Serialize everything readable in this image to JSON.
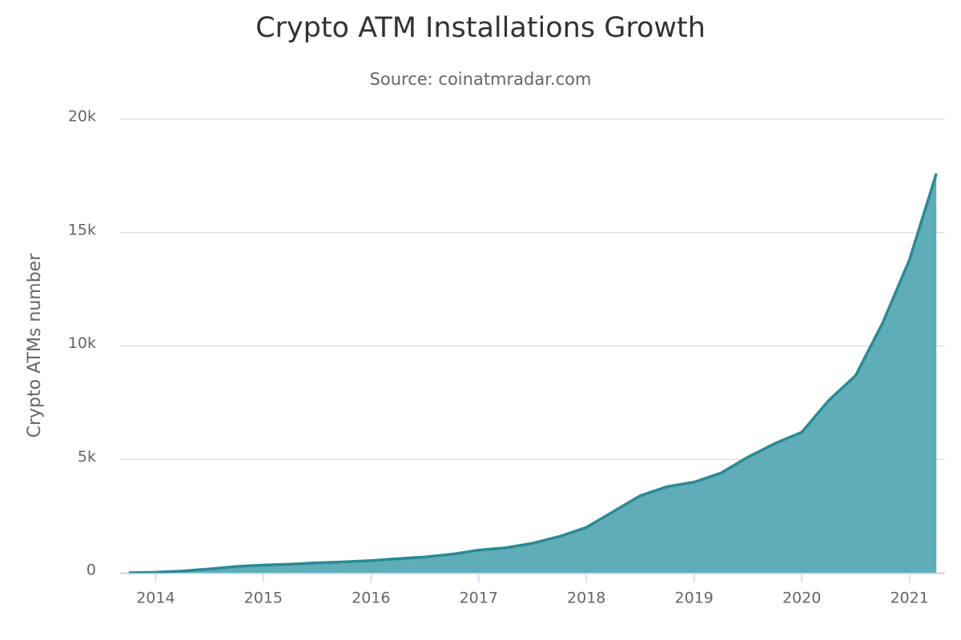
{
  "chart_data": {
    "type": "area",
    "title": "Crypto ATM Installations Growth",
    "subtitle": "Source: coinatmradar.com",
    "y_label": "Crypto ATMs number",
    "x": [
      2013.75,
      2014.0,
      2014.25,
      2014.5,
      2014.75,
      2015.0,
      2015.25,
      2015.5,
      2015.75,
      2016.0,
      2016.25,
      2016.5,
      2016.75,
      2017.0,
      2017.25,
      2017.5,
      2017.75,
      2018.0,
      2018.25,
      2018.5,
      2018.75,
      2019.0,
      2019.25,
      2019.5,
      2019.75,
      2020.0,
      2020.25,
      2020.5,
      2020.75,
      2021.0,
      2021.25
    ],
    "series": [
      {
        "name": "Crypto ATMs",
        "color": "#2a8a93",
        "fill": "#5fadb9",
        "values": [
          0,
          20,
          80,
          170,
          280,
          340,
          380,
          440,
          480,
          540,
          620,
          700,
          820,
          1000,
          1100,
          1300,
          1600,
          2000,
          2700,
          3400,
          3800,
          4000,
          4400,
          5100,
          5700,
          6200,
          7600,
          8700,
          11000,
          13800,
          17600
        ]
      }
    ],
    "xlim": [
      2013.67,
      2021.33
    ],
    "xticks": [
      2014,
      2015,
      2016,
      2017,
      2018,
      2019,
      2020,
      2021
    ],
    "ylim": [
      0,
      20000
    ],
    "yticks": [
      0,
      {
        "value": 5000,
        "label": "5k"
      },
      {
        "value": 10000,
        "label": "10k"
      },
      {
        "value": 15000,
        "label": "15k"
      },
      {
        "value": 20000,
        "label": "20k"
      }
    ],
    "grid": true
  }
}
